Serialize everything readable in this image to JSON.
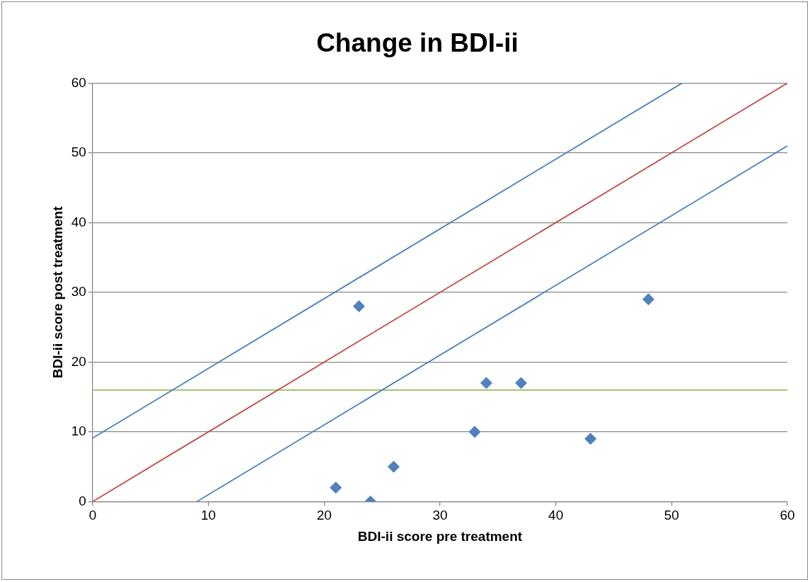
{
  "chart_data": {
    "type": "scatter",
    "title": "Change in BDI-ii",
    "xlabel": "BDI-ii score pre treatment",
    "ylabel": "BDI-ii score post treatment",
    "xlim": [
      0,
      60
    ],
    "xticks": [
      0,
      10,
      20,
      30,
      40,
      50,
      60
    ],
    "ylim": [
      0,
      60
    ],
    "yticks": [
      0,
      10,
      20,
      30,
      40,
      50,
      60
    ],
    "grid": "y",
    "legend": false,
    "series": [
      {
        "marker": "diamond",
        "color": "#4f81bd",
        "x": [
          21,
          23,
          24,
          26,
          33,
          34,
          37,
          43,
          48
        ],
        "values": [
          2,
          28,
          0,
          5,
          10,
          17,
          17,
          9,
          29
        ]
      },
      {
        "type": "line",
        "marker": "none",
        "color": "#4a7ebb",
        "x": [
          0,
          50.9
        ],
        "values": [
          9.1,
          60
        ]
      },
      {
        "type": "line",
        "marker": "none",
        "color": "#be4b48",
        "x": [
          0,
          60
        ],
        "values": [
          0,
          60
        ]
      },
      {
        "type": "line",
        "marker": "none",
        "color": "#4a7ebb",
        "x": [
          9,
          60
        ],
        "values": [
          0,
          51
        ]
      }
    ],
    "ref_lines": [
      {
        "axis": "y",
        "value": 16,
        "color": "#9bbb59"
      }
    ]
  }
}
